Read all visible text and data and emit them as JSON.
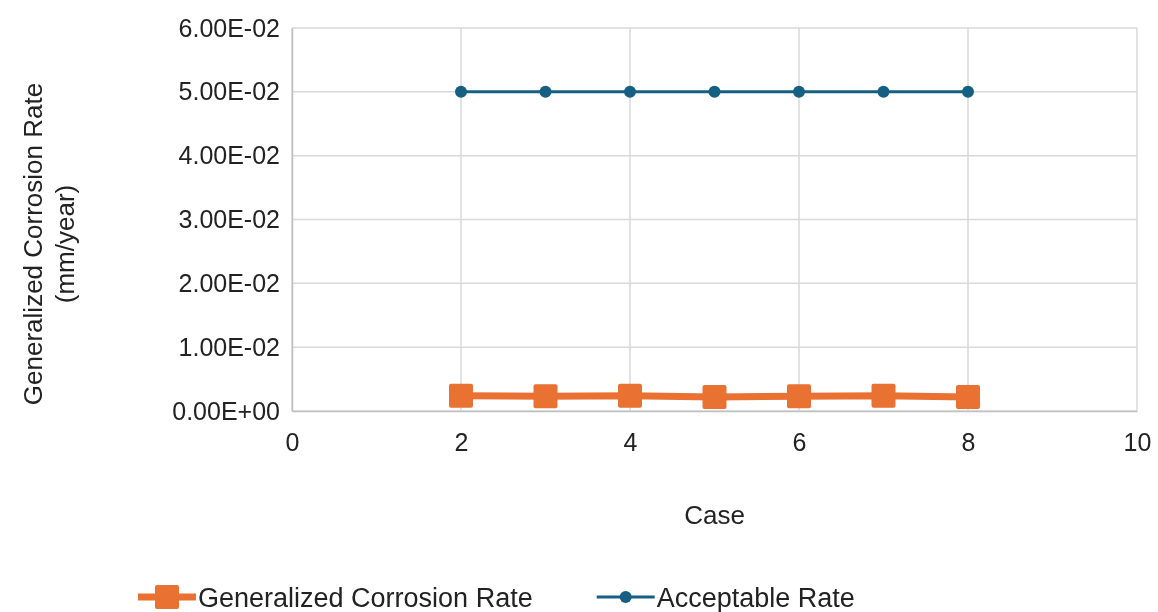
{
  "chart_data": {
    "type": "line",
    "xlabel": "Case",
    "ylabel": "Generalized Corrosion Rate (mm/year)",
    "xlim": [
      0,
      10
    ],
    "xticks": [
      0,
      2,
      4,
      6,
      8,
      10
    ],
    "ylim": [
      0,
      0.06
    ],
    "yticks": [
      {
        "value": 0,
        "label": "0.00E+00"
      },
      {
        "value": 0.01,
        "label": "1.00E-02"
      },
      {
        "value": 0.02,
        "label": "2.00E-02"
      },
      {
        "value": 0.03,
        "label": "3.00E-02"
      },
      {
        "value": 0.04,
        "label": "4.00E-02"
      },
      {
        "value": 0.05,
        "label": "5.00E-02"
      },
      {
        "value": 0.06,
        "label": "6.00E-02"
      }
    ],
    "grid": true,
    "legend": "bottom",
    "x": [
      2,
      3,
      4,
      5,
      6,
      7,
      8
    ],
    "series": [
      {
        "name": "Generalized Corrosion Rate",
        "color": "#e97132",
        "marker": "square",
        "values": [
          0.0024,
          0.0023,
          0.0024,
          0.0022,
          0.0023,
          0.0024,
          0.0022
        ]
      },
      {
        "name": "Acceptable Rate",
        "color": "#156082",
        "marker": "circle",
        "values": [
          0.05,
          0.05,
          0.05,
          0.05,
          0.05,
          0.05,
          0.05
        ]
      }
    ]
  }
}
